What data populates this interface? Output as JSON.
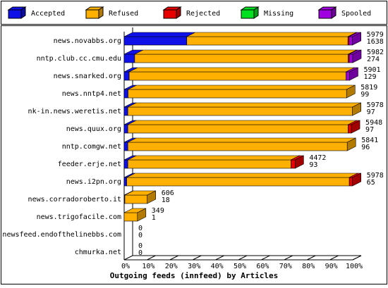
{
  "chart_data": {
    "type": "stacked-bar-3d",
    "orientation": "horizontal",
    "title": "Outgoing feeds (innfeed) by Articles",
    "categories": [
      "news.novabbs.org",
      "nntp.club.cc.cmu.edu",
      "news.snarked.org",
      "news.nntp4.net",
      "nk-in.news.weretis.net",
      "news.quux.org",
      "nntp.comgw.net",
      "feeder.erje.net",
      "news.i2pn.org",
      "news.corradoroberto.it",
      "news.trigofacile.com",
      "newsfeed.endofthelinebbs.com",
      "chmurka.net"
    ],
    "series": [
      {
        "name": "Accepted",
        "color": "#1010e8",
        "values": [
          27.4,
          4.6,
          2.2,
          1.7,
          1.6,
          1.6,
          1.6,
          1.6,
          1.1,
          0.3,
          0,
          0,
          0
        ]
      },
      {
        "name": "Refused",
        "color": "#ffb000",
        "values": [
          70.5,
          93.4,
          94.9,
          95.6,
          98.3,
          96.4,
          96.0,
          71.4,
          97.4,
          9.8,
          5.8,
          0,
          0
        ]
      },
      {
        "name": "Rejected",
        "color": "#e80000",
        "values": [
          0.5,
          0.5,
          0,
          0,
          0,
          1.4,
          0,
          1.8,
          1.4,
          0,
          0,
          0,
          0
        ]
      },
      {
        "name": "Missing",
        "color": "#00e020",
        "values": [
          0,
          0,
          0,
          0,
          0,
          0,
          0,
          0,
          0,
          0,
          0,
          0,
          0
        ]
      },
      {
        "name": "Spooled",
        "color": "#a000e0",
        "values": [
          1.5,
          1.5,
          1.5,
          0,
          0,
          0,
          0,
          0,
          0,
          0,
          0,
          0,
          0
        ]
      }
    ],
    "bar_labels": [
      [
        5979,
        1638
      ],
      [
        5982,
        274
      ],
      [
        5901,
        129
      ],
      [
        5819,
        99
      ],
      [
        5978,
        97
      ],
      [
        5948,
        97
      ],
      [
        5841,
        96
      ],
      [
        4472,
        93
      ],
      [
        5978,
        65
      ],
      [
        606,
        18
      ],
      [
        349,
        1
      ],
      [
        0,
        0
      ],
      [
        0,
        0
      ]
    ],
    "xlim": [
      0,
      100
    ],
    "xticks": [
      {
        "value": 0,
        "label": "0%"
      },
      {
        "value": 10,
        "label": "10%"
      },
      {
        "value": 20,
        "label": "20%"
      },
      {
        "value": 30,
        "label": "30%"
      },
      {
        "value": 40,
        "label": "40%"
      },
      {
        "value": 50,
        "label": "50%"
      },
      {
        "value": 60,
        "label": "60%"
      },
      {
        "value": 70,
        "label": "70%"
      },
      {
        "value": 80,
        "label": "80%"
      },
      {
        "value": 90,
        "label": "90%"
      },
      {
        "value": 100,
        "label": "100%"
      }
    ],
    "legend": "top"
  }
}
